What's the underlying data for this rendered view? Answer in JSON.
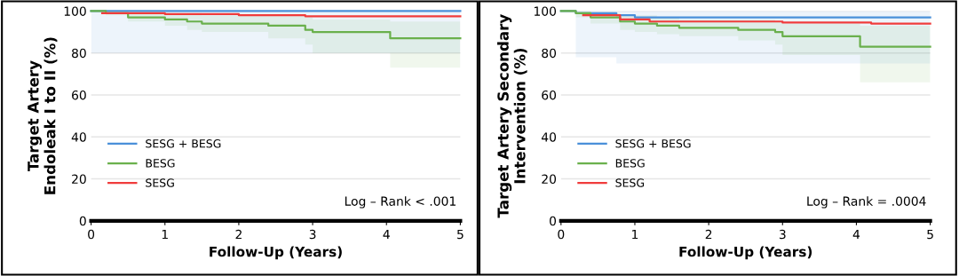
{
  "chart_data": [
    {
      "type": "step",
      "ylabel": "Target Artery\nEndoleak I to II (%)",
      "xlabel": "Follow-Up (Years)",
      "xlim": [
        0,
        5
      ],
      "xticks": [
        0,
        1,
        2,
        3,
        4,
        5
      ],
      "ylim": [
        0,
        100
      ],
      "yticks": [
        0,
        20,
        40,
        60,
        80,
        100
      ],
      "grid": "y",
      "legend": "left",
      "annotations": [
        "Log – Rank < .001"
      ],
      "series": [
        {
          "name": "SESG + BESG",
          "color": "#4a90d9",
          "x": [
            0,
            5
          ],
          "values": [
            100,
            100
          ],
          "lower": [
            80,
            80
          ],
          "upper": [
            100,
            100
          ]
        },
        {
          "name": "BESG",
          "color": "#6ab04c",
          "x": [
            0,
            0.2,
            0.5,
            1.0,
            1.3,
            1.5,
            2.4,
            2.9,
            3.0,
            4.05,
            5
          ],
          "values": [
            100,
            99,
            97,
            96,
            95,
            94,
            93,
            91,
            90,
            87,
            87
          ],
          "lower": [
            100,
            98,
            95,
            93,
            91,
            90,
            87,
            84,
            80,
            73,
            73
          ],
          "upper": [
            100,
            100,
            100,
            99,
            99,
            98,
            98,
            97,
            96,
            95,
            95
          ]
        },
        {
          "name": "SESG",
          "color": "#f03c3c",
          "x": [
            0.15,
            1.0,
            2.0,
            2.9,
            5
          ],
          "values": [
            99,
            98.5,
            98,
            97.5,
            97.5
          ]
        }
      ]
    },
    {
      "type": "step",
      "ylabel": "Target Artery Secondary\nIntervention (%)",
      "xlabel": "Follow-Up (Years)",
      "xlim": [
        0,
        5
      ],
      "xticks": [
        0,
        1,
        2,
        3,
        4,
        5
      ],
      "ylim": [
        0,
        100
      ],
      "yticks": [
        0,
        20,
        40,
        60,
        80,
        100
      ],
      "grid": "y",
      "legend": "left",
      "annotations": [
        "Log – Rank = .0004"
      ],
      "series": [
        {
          "name": "SESG + BESG",
          "color": "#4a90d9",
          "x": [
            0,
            0.2,
            0.75,
            1.0,
            5
          ],
          "values": [
            100,
            99,
            98,
            97,
            97
          ],
          "lower": [
            100,
            78,
            75,
            75,
            75
          ],
          "upper": [
            100,
            100,
            100,
            100,
            100
          ]
        },
        {
          "name": "BESG",
          "color": "#6ab04c",
          "x": [
            0,
            0.2,
            0.4,
            0.8,
            1.0,
            1.3,
            1.6,
            2.4,
            2.9,
            3.0,
            4.05,
            5
          ],
          "values": [
            100,
            99,
            97,
            95,
            94,
            93,
            92,
            91,
            90,
            88,
            83,
            83
          ],
          "lower": [
            100,
            97,
            94,
            91,
            90,
            89,
            88,
            86,
            84,
            79,
            66,
            66
          ],
          "upper": [
            100,
            100,
            99,
            98,
            98,
            97,
            96,
            96,
            95,
            94,
            93,
            93
          ]
        },
        {
          "name": "SESG",
          "color": "#f03c3c",
          "x": [
            0.3,
            0.8,
            1.2,
            3.0,
            4.2,
            5
          ],
          "values": [
            98,
            96,
            95,
            94.5,
            94,
            94
          ]
        }
      ]
    }
  ]
}
